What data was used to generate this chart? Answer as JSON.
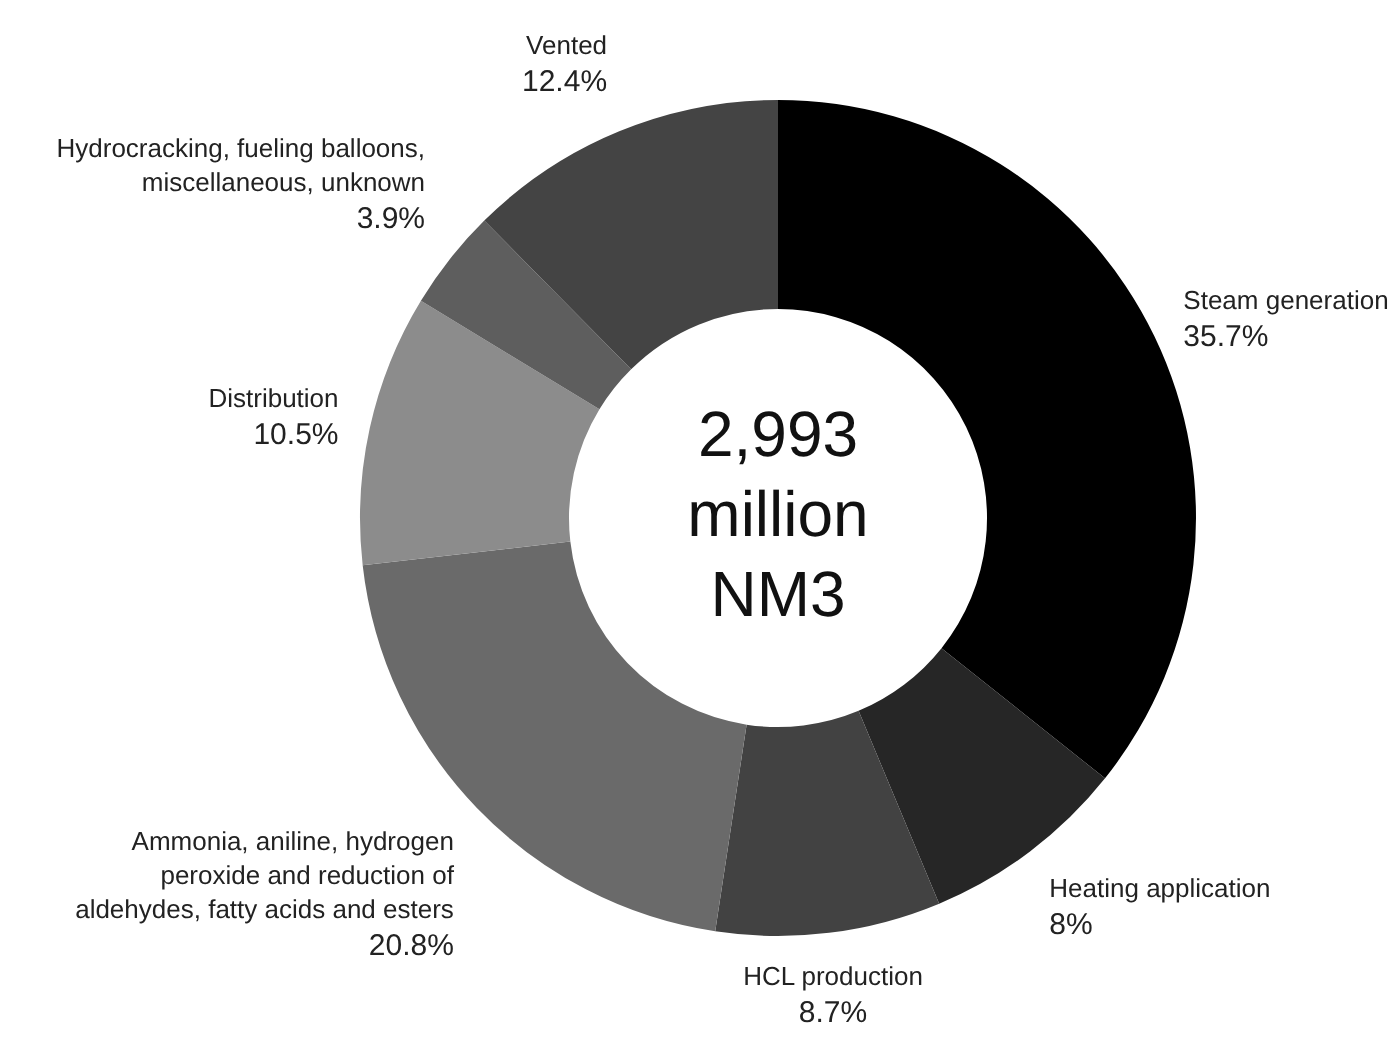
{
  "chart_data": {
    "type": "donut",
    "title": "2,993 million NM3",
    "categories": [
      "Steam generation",
      "Heating application",
      "HCL production",
      "Ammonia, aniline, hydrogen peroxide and reduction of aldehydes, fatty acids and esters",
      "Distribution",
      "Hydrocracking, fueling balloons, miscellaneous, unknown",
      "Vented"
    ],
    "values": [
      35.7,
      8,
      8.7,
      20.8,
      10.5,
      3.9,
      12.4
    ],
    "value_labels": [
      "35.7%",
      "8%",
      "8.7%",
      "20.8%",
      "10.5%",
      "3.9%",
      "12.4%"
    ],
    "colors": [
      "#000000",
      "#262626",
      "#424242",
      "#6a6a6a",
      "#8c8c8c",
      "#5e5e5e",
      "#444444"
    ],
    "legend": false
  }
}
